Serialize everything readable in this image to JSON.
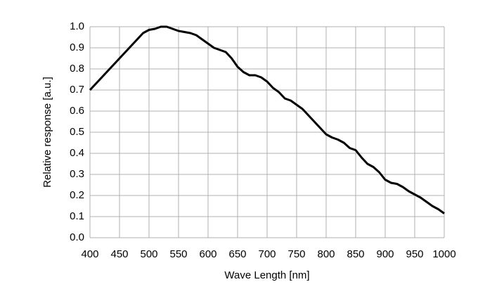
{
  "chart_data": {
    "type": "line",
    "x_label": "Wave Length [nm]",
    "y_label": "Relative response [a.u.]",
    "x": [
      400,
      410,
      420,
      430,
      440,
      450,
      460,
      470,
      480,
      490,
      500,
      510,
      520,
      530,
      540,
      550,
      560,
      570,
      580,
      590,
      600,
      610,
      620,
      630,
      640,
      650,
      660,
      670,
      680,
      690,
      700,
      710,
      720,
      730,
      740,
      750,
      760,
      770,
      780,
      790,
      800,
      810,
      820,
      830,
      840,
      850,
      860,
      870,
      880,
      890,
      900,
      910,
      920,
      930,
      940,
      950,
      960,
      970,
      980,
      990,
      1000
    ],
    "values": [
      0.7,
      0.73,
      0.76,
      0.79,
      0.82,
      0.85,
      0.88,
      0.91,
      0.94,
      0.97,
      0.985,
      0.99,
      1.0,
      1.0,
      0.99,
      0.98,
      0.975,
      0.97,
      0.96,
      0.94,
      0.92,
      0.9,
      0.89,
      0.88,
      0.85,
      0.81,
      0.785,
      0.77,
      0.77,
      0.76,
      0.74,
      0.71,
      0.69,
      0.66,
      0.65,
      0.63,
      0.61,
      0.58,
      0.55,
      0.52,
      0.49,
      0.475,
      0.465,
      0.45,
      0.425,
      0.415,
      0.38,
      0.35,
      0.335,
      0.31,
      0.275,
      0.26,
      0.255,
      0.24,
      0.22,
      0.205,
      0.19,
      0.17,
      0.15,
      0.135,
      0.115
    ],
    "color": "#000000",
    "xlim": [
      400,
      1000
    ],
    "xticks": [
      400,
      450,
      500,
      550,
      600,
      650,
      700,
      750,
      800,
      850,
      900,
      950,
      1000
    ],
    "ylim": [
      0,
      1
    ],
    "yticks": [
      {
        "value": 0,
        "label": "0.0"
      },
      0.1,
      0.2,
      0.3,
      0.4,
      0.5,
      0.6,
      0.7,
      0.8,
      0.9,
      {
        "value": 1,
        "label": "1.0"
      }
    ],
    "grid": true
  }
}
